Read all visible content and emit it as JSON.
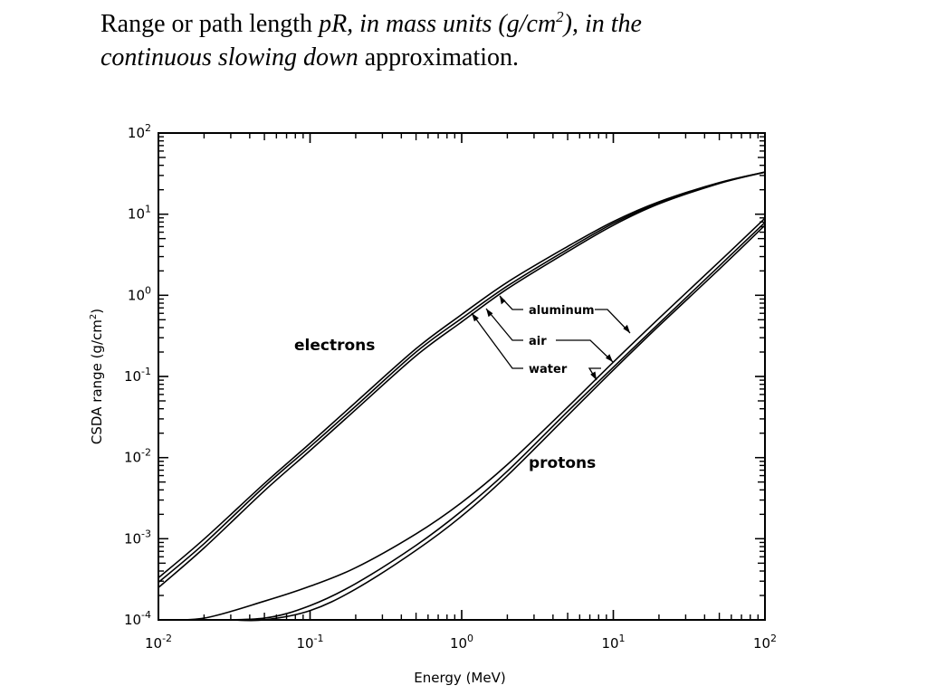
{
  "slide": {
    "title_part1": "Range or path length ",
    "title_part2": "pR, in mass units (g/cm",
    "title_sup": "2",
    "title_part3": "), in the",
    "title_part4": "continuous slowing down",
    "title_part5": " approximation",
    "title_part6": "."
  },
  "chart_data": {
    "type": "line",
    "x_scale": "log",
    "y_scale": "log",
    "xlim": [
      0.01,
      100
    ],
    "ylim": [
      0.0001,
      100
    ],
    "xlabel": "Energy (MeV)",
    "ylabel_main": "CSDA range (g/cm",
    "ylabel_sup": "2",
    "ylabel_end": ")",
    "x_ticks": [
      {
        "base": "10",
        "exp": "-2",
        "value": 0.01
      },
      {
        "base": "10",
        "exp": "-1",
        "value": 0.1
      },
      {
        "base": "10",
        "exp": "0",
        "value": 1
      },
      {
        "base": "10",
        "exp": "1",
        "value": 10
      },
      {
        "base": "10",
        "exp": "2",
        "value": 100
      }
    ],
    "y_ticks": [
      {
        "base": "10",
        "exp": "-4",
        "value": 0.0001
      },
      {
        "base": "10",
        "exp": "-3",
        "value": 0.001
      },
      {
        "base": "10",
        "exp": "-2",
        "value": 0.01
      },
      {
        "base": "10",
        "exp": "-1",
        "value": 0.1
      },
      {
        "base": "10",
        "exp": "0",
        "value": 1
      },
      {
        "base": "10",
        "exp": "1",
        "value": 10
      },
      {
        "base": "10",
        "exp": "2",
        "value": 100
      }
    ],
    "annotations": {
      "electrons": "electrons",
      "protons": "protons",
      "aluminum": "aluminum",
      "air": "air",
      "water": "water"
    },
    "series": [
      {
        "group": "electrons",
        "material": "aluminum",
        "x": [
          0.01,
          0.02,
          0.05,
          0.1,
          0.2,
          0.5,
          1,
          2,
          5,
          10,
          20,
          50,
          100
        ],
        "y": [
          0.00033,
          0.00099,
          0.0048,
          0.015,
          0.048,
          0.22,
          0.58,
          1.45,
          4.0,
          8.1,
          14.2,
          24.5,
          33
        ]
      },
      {
        "group": "electrons",
        "material": "air",
        "x": [
          0.01,
          0.02,
          0.05,
          0.1,
          0.2,
          0.5,
          1,
          2,
          5,
          10,
          20,
          50,
          100
        ],
        "y": [
          0.00029,
          0.00087,
          0.0044,
          0.0136,
          0.043,
          0.2,
          0.52,
          1.3,
          3.7,
          7.7,
          13.8,
          24.2,
          33
        ]
      },
      {
        "group": "electrons",
        "material": "water",
        "x": [
          0.01,
          0.02,
          0.05,
          0.1,
          0.2,
          0.5,
          1,
          2,
          5,
          10,
          20,
          50,
          100
        ],
        "y": [
          0.00025,
          0.00077,
          0.0039,
          0.0122,
          0.039,
          0.18,
          0.47,
          1.2,
          3.45,
          7.3,
          13.4,
          23.9,
          33
        ]
      },
      {
        "group": "protons",
        "material": "aluminum",
        "x": [
          0.01,
          0.02,
          0.05,
          0.1,
          0.2,
          0.5,
          1,
          2,
          5,
          10,
          20,
          50,
          100
        ],
        "y": [
          0.0001,
          0.000105,
          0.00017,
          0.00026,
          0.00044,
          0.00115,
          0.0028,
          0.0082,
          0.042,
          0.15,
          0.52,
          2.6,
          8.9
        ]
      },
      {
        "group": "protons",
        "material": "air",
        "x": [
          0.02,
          0.05,
          0.1,
          0.2,
          0.5,
          1,
          2,
          5,
          10,
          20,
          50,
          100
        ],
        "y": [
          0.0001,
          0.000105,
          0.00015,
          0.00028,
          0.00083,
          0.0022,
          0.0068,
          0.037,
          0.13,
          0.45,
          2.3,
          7.9
        ]
      },
      {
        "group": "protons",
        "material": "water",
        "x": [
          0.03,
          0.05,
          0.1,
          0.2,
          0.5,
          1,
          2,
          5,
          10,
          20,
          50,
          100
        ],
        "y": [
          0.0001,
          0.0001,
          0.00013,
          0.00024,
          0.00072,
          0.0019,
          0.006,
          0.033,
          0.12,
          0.42,
          2.1,
          7.3
        ]
      }
    ]
  }
}
